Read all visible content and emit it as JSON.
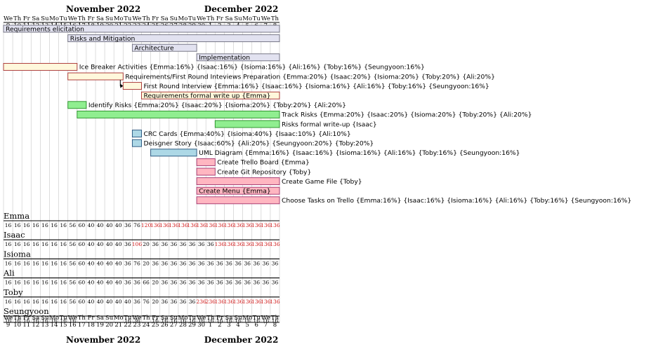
{
  "months_top": [
    {
      "label": "November 2022",
      "start": 0,
      "span": 22
    },
    {
      "label": "December 2022",
      "start": 22,
      "span": 8
    }
  ],
  "months_bottom": [
    {
      "label": "November 2022",
      "start": 0,
      "span": 22
    },
    {
      "label": "December 2022",
      "start": 22,
      "span": 8
    }
  ],
  "days": [
    {
      "dow": "We",
      "dom": "9"
    },
    {
      "dow": "Th",
      "dom": "10"
    },
    {
      "dow": "Fr",
      "dom": "11"
    },
    {
      "dow": "Sa",
      "dom": "12"
    },
    {
      "dow": "Su",
      "dom": "13"
    },
    {
      "dow": "Mo",
      "dom": "14"
    },
    {
      "dow": "Tu",
      "dom": "15"
    },
    {
      "dow": "We",
      "dom": "16"
    },
    {
      "dow": "Th",
      "dom": "17"
    },
    {
      "dow": "Fr",
      "dom": "18"
    },
    {
      "dow": "Sa",
      "dom": "19"
    },
    {
      "dow": "Su",
      "dom": "20"
    },
    {
      "dow": "Mo",
      "dom": "21"
    },
    {
      "dow": "Tu",
      "dom": "22"
    },
    {
      "dow": "We",
      "dom": "23"
    },
    {
      "dow": "Th",
      "dom": "24"
    },
    {
      "dow": "Fr",
      "dom": "25"
    },
    {
      "dow": "Sa",
      "dom": "26"
    },
    {
      "dow": "Su",
      "dom": "27"
    },
    {
      "dow": "Mo",
      "dom": "28"
    },
    {
      "dow": "Tu",
      "dom": "29"
    },
    {
      "dow": "We",
      "dom": "30"
    },
    {
      "dow": "Th",
      "dom": "1"
    },
    {
      "dow": "Fr",
      "dom": "2"
    },
    {
      "dow": "Sa",
      "dom": "3"
    },
    {
      "dow": "Su",
      "dom": "4"
    },
    {
      "dow": "Mo",
      "dom": "5"
    },
    {
      "dow": "Tu",
      "dom": "6"
    },
    {
      "dow": "We",
      "dom": "7"
    },
    {
      "dow": "Th",
      "dom": "8"
    }
  ],
  "colors": {
    "phase_fill": "#e2e2f0",
    "phase_stroke": "#6b6b7a",
    "req_fill": "#fff8dc",
    "req_stroke": "#a52a2a",
    "risk_fill": "#90ee90",
    "risk_stroke": "#228b22",
    "design_fill": "#add8e6",
    "design_stroke": "#1f4e79",
    "impl_fill": "#ffb6c1",
    "impl_stroke": "#a0306a",
    "overload": "#d11a1a"
  },
  "tasks": [
    {
      "label": "Requirements elicitation",
      "start": 0,
      "end": 30,
      "kind": "phase",
      "label_pos": "inside"
    },
    {
      "label": "Risks and Mitigation",
      "start": 7,
      "end": 30,
      "kind": "phase",
      "label_pos": "inside"
    },
    {
      "label": "Architecture",
      "start": 14,
      "end": 21,
      "kind": "phase",
      "label_pos": "inside"
    },
    {
      "label": "Implementation",
      "start": 21,
      "end": 30,
      "kind": "phase",
      "label_pos": "inside"
    },
    {
      "label": "Ice Breaker Activities {Emma:16%} {Isaac:16%} {Isioma:16%} {Ali:16%} {Toby:16%} {Seungyoon:16%}",
      "start": 0,
      "end": 8,
      "kind": "req",
      "label_pos": "after"
    },
    {
      "label": "Requirements/First Round Inteviews Preparation {Emma:20%} {Isaac:20%} {Isioma:20%} {Toby:20%} {Ali:20%}",
      "start": 7,
      "end": 13,
      "kind": "req",
      "label_pos": "after"
    },
    {
      "label": "First Round Interview {Emma:16%} {Isaac:16%} {Isioma:16%} {Ali:16%} {Toby:16%} {Seungyoon:16%}",
      "start": 13,
      "end": 15,
      "kind": "req",
      "label_pos": "after"
    },
    {
      "label": "Requirements formal write up {Emma}",
      "start": 15,
      "end": 30,
      "kind": "req",
      "label_pos": "inside"
    },
    {
      "label": "Identify Risks {Emma:20%} {Isaac:20%} {Isioma:20%} {Toby:20%} {Ali:20%}",
      "start": 7,
      "end": 9,
      "kind": "risk",
      "label_pos": "after"
    },
    {
      "label": "Track Risks {Emma:20%} {Isaac:20%} {Isioma:20%} {Toby:20%} {Ali:20%}",
      "start": 8,
      "end": 30,
      "kind": "risk",
      "label_pos": "after"
    },
    {
      "label": "Risks formal write-up {Isaac}",
      "start": 23,
      "end": 30,
      "kind": "risk",
      "label_pos": "after"
    },
    {
      "label": "CRC Cards {Emma:40%} {Isioma:40%} {Isaac:10%} {Ali:10%}",
      "start": 14,
      "end": 15,
      "kind": "design",
      "label_pos": "after"
    },
    {
      "label": "Deisgner Story {Isaac:60%} {Ali:20%} {Seungyoon:20%} {Toby:20%}",
      "start": 14,
      "end": 15,
      "kind": "design",
      "label_pos": "after"
    },
    {
      "label": "UML Diagram {Emma:16%} {Isaac:16%} {Isioma:16%} {Ali:16%} {Toby:16%} {Seungyoon:16%}",
      "start": 16,
      "end": 21,
      "kind": "design",
      "label_pos": "after"
    },
    {
      "label": "Create Trello Board {Emma}",
      "start": 21,
      "end": 23,
      "kind": "impl",
      "label_pos": "after"
    },
    {
      "label": "Create Git Repository {Toby}",
      "start": 21,
      "end": 23,
      "kind": "impl",
      "label_pos": "after"
    },
    {
      "label": "Create Game File {Toby}",
      "start": 21,
      "end": 30,
      "kind": "impl",
      "label_pos": "after"
    },
    {
      "label": "Create Menu {Emma}",
      "start": 21,
      "end": 30,
      "kind": "impl",
      "label_pos": "inside"
    },
    {
      "label": "Choose Tasks on Trello {Emma:16%} {Isaac:16%} {Isioma:16%} {Ali:16%} {Toby:16%} {Seungyoon:16%}",
      "start": 21,
      "end": 30,
      "kind": "impl",
      "label_pos": "after"
    }
  ],
  "dependency_arrow": {
    "from_task": 5,
    "to_task": 6
  },
  "resources": [
    {
      "name": "Emma",
      "loads": [
        "16",
        "16",
        "16",
        "16",
        "16",
        "16",
        "16",
        "56",
        "60",
        "40",
        "40",
        "40",
        "40",
        "36",
        "76",
        "120",
        "136",
        "136",
        "136",
        "136",
        "136",
        "136",
        "136",
        "136",
        "136",
        "136",
        "136",
        "136",
        "136",
        "136"
      ],
      "over_from": 15
    },
    {
      "name": "Isaac",
      "loads": [
        "16",
        "16",
        "16",
        "16",
        "16",
        "16",
        "16",
        "56",
        "60",
        "40",
        "40",
        "40",
        "40",
        "36",
        "106",
        "20",
        "36",
        "36",
        "36",
        "36",
        "36",
        "36",
        "36",
        "136",
        "136",
        "136",
        "136",
        "136",
        "136",
        "136"
      ],
      "over_from": 23,
      "over_extra": [
        14
      ]
    },
    {
      "name": "Isioma",
      "loads": [
        "16",
        "16",
        "16",
        "16",
        "16",
        "16",
        "16",
        "56",
        "60",
        "40",
        "40",
        "40",
        "40",
        "36",
        "76",
        "20",
        "36",
        "36",
        "36",
        "36",
        "36",
        "36",
        "36",
        "36",
        "36",
        "36",
        "36",
        "36",
        "36",
        "36"
      ],
      "over_from": 99
    },
    {
      "name": "Ali",
      "loads": [
        "16",
        "16",
        "16",
        "16",
        "16",
        "16",
        "16",
        "56",
        "60",
        "40",
        "40",
        "40",
        "40",
        "36",
        "36",
        "66",
        "20",
        "36",
        "36",
        "36",
        "36",
        "36",
        "36",
        "36",
        "36",
        "36",
        "36",
        "36",
        "36",
        "36"
      ],
      "over_from": 99
    },
    {
      "name": "Toby",
      "loads": [
        "16",
        "16",
        "16",
        "16",
        "16",
        "16",
        "16",
        "56",
        "60",
        "40",
        "40",
        "40",
        "40",
        "40",
        "36",
        "76",
        "20",
        "36",
        "36",
        "36",
        "36",
        "236",
        "236",
        "136",
        "136",
        "136",
        "136",
        "136",
        "136",
        "136"
      ],
      "over_from": 21
    },
    {
      "name": "Seungyoon",
      "loads": [
        "16",
        "16",
        "16",
        "16",
        "16",
        "16",
        "16",
        "16",
        "",
        "",
        "",
        "",
        "",
        "16",
        "36",
        "",
        "16",
        "16",
        "16",
        "16",
        "16",
        "16",
        "16",
        "16",
        "16",
        "16",
        "16",
        "16",
        "16",
        "16"
      ],
      "over_from": 99
    }
  ]
}
